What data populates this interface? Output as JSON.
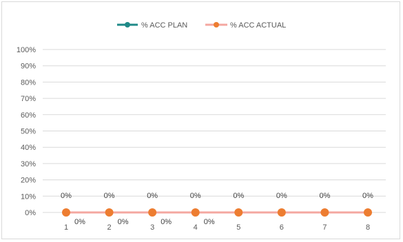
{
  "chart_data": {
    "type": "line",
    "categories": [
      "1",
      "2",
      "3",
      "4",
      "5",
      "6",
      "7",
      "8"
    ],
    "series": [
      {
        "name": "% ACC PLAN",
        "color": "#1f8a88",
        "values": [
          0,
          0,
          0,
          0,
          0,
          0,
          0,
          0
        ],
        "data_labels": [
          "0%",
          "0%",
          "0%",
          "0%",
          "0%",
          "0%",
          "0%",
          "0%"
        ]
      },
      {
        "name": "% ACC ACTUAL",
        "color": "#ed7d31",
        "line_color": "#f4a7a0",
        "values": [
          0,
          0,
          0,
          0,
          0,
          0,
          0,
          0
        ],
        "data_labels": [
          "0%",
          "0%",
          "0%",
          "0%"
        ]
      }
    ],
    "y_ticks": [
      "0%",
      "10%",
      "20%",
      "30%",
      "40%",
      "50%",
      "60%",
      "70%",
      "80%",
      "90%",
      "100%"
    ],
    "ylim": [
      0,
      100
    ],
    "grid": true,
    "legend_position": "top"
  }
}
